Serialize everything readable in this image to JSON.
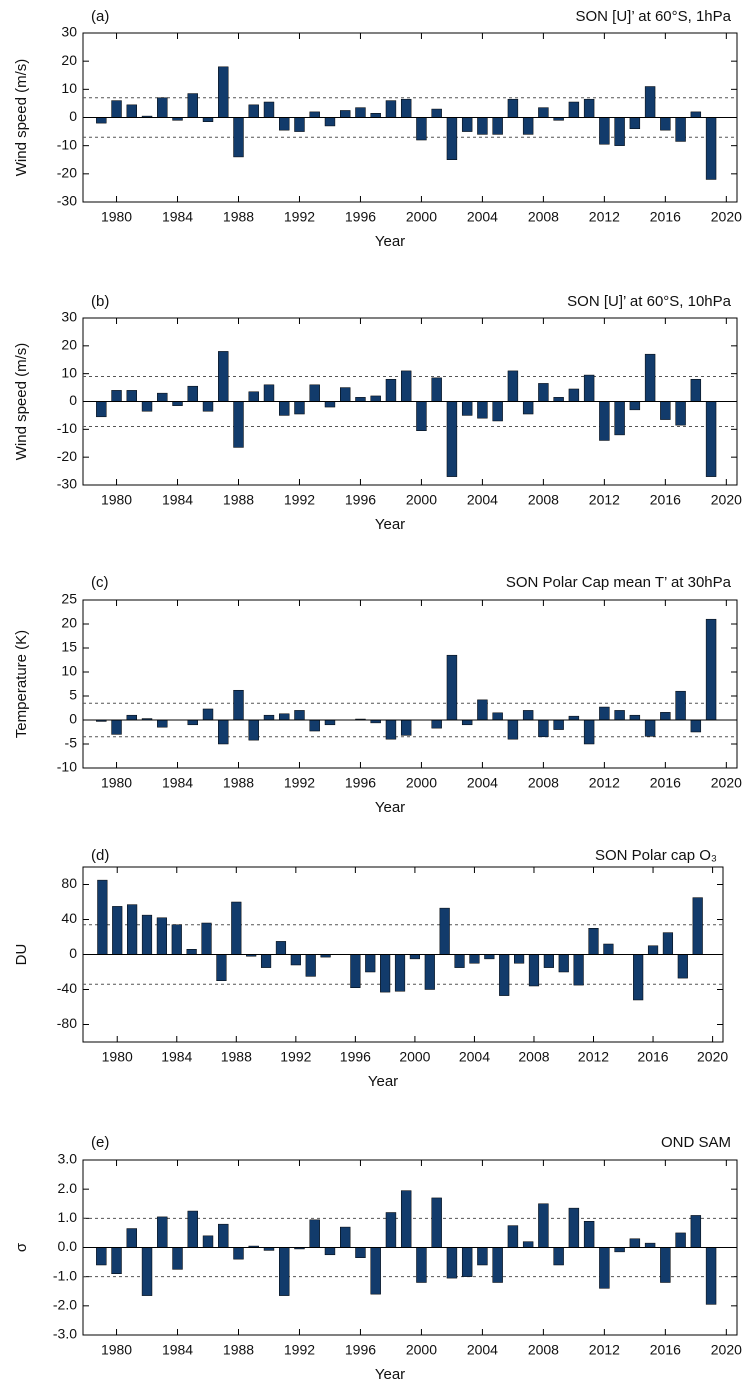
{
  "chart_data": [
    {
      "type": "bar",
      "panel_label": "(a)",
      "title": "SON [U]’ at 60°S, 1hPa",
      "ylabel": "Wind speed (m/s)",
      "xlabel": "Year",
      "color": "#123b6b",
      "x": [
        1979,
        1980,
        1981,
        1982,
        1983,
        1984,
        1985,
        1986,
        1987,
        1988,
        1989,
        1990,
        1991,
        1992,
        1993,
        1994,
        1995,
        1996,
        1997,
        1998,
        1999,
        2000,
        2001,
        2002,
        2003,
        2004,
        2005,
        2006,
        2007,
        2008,
        2009,
        2010,
        2011,
        2012,
        2013,
        2014,
        2015,
        2016,
        2017,
        2018,
        2019
      ],
      "values": [
        -2,
        6,
        4.5,
        0.5,
        7,
        -1,
        8.5,
        -1.5,
        18,
        -14,
        4.5,
        5.5,
        -4.5,
        -5,
        2,
        -3,
        2.5,
        3.5,
        1.5,
        6,
        6.5,
        -8,
        3,
        -15,
        -5,
        -6,
        -6,
        6.5,
        -6,
        3.5,
        -1,
        5.5,
        6.5,
        -9.5,
        -10,
        -4,
        11,
        -4.5,
        -8.5,
        2,
        -22
      ],
      "hlines": [
        7,
        -7
      ],
      "xlim": [
        1977.8,
        2020.7
      ],
      "ylim": [
        -30,
        30
      ],
      "xticks": [
        1980,
        1984,
        1988,
        1992,
        1996,
        2000,
        2004,
        2008,
        2012,
        2016,
        2020
      ],
      "yticks": [
        -30,
        -20,
        -10,
        0,
        10,
        20,
        30
      ]
    },
    {
      "type": "bar",
      "panel_label": "(b)",
      "title": "SON [U]’ at 60°S, 10hPa",
      "ylabel": "Wind speed (m/s)",
      "xlabel": "Year",
      "color": "#123b6b",
      "x": [
        1979,
        1980,
        1981,
        1982,
        1983,
        1984,
        1985,
        1986,
        1987,
        1988,
        1989,
        1990,
        1991,
        1992,
        1993,
        1994,
        1995,
        1996,
        1997,
        1998,
        1999,
        2000,
        2001,
        2002,
        2003,
        2004,
        2005,
        2006,
        2007,
        2008,
        2009,
        2010,
        2011,
        2012,
        2013,
        2014,
        2015,
        2016,
        2017,
        2018,
        2019
      ],
      "values": [
        -5.5,
        4,
        4,
        -3.5,
        3,
        -1.5,
        5.5,
        -3.5,
        18,
        -16.5,
        3.5,
        6,
        -5,
        -4.5,
        6,
        -2,
        5,
        1.5,
        2,
        8,
        11,
        -10.5,
        8.5,
        -27,
        -5,
        -6,
        -7,
        11,
        -4.5,
        6.5,
        1.5,
        4.5,
        9.5,
        -14,
        -12,
        -3,
        17,
        -6.5,
        -8.5,
        8,
        -27
      ],
      "hlines": [
        9,
        -9
      ],
      "xlim": [
        1977.8,
        2020.7
      ],
      "ylim": [
        -30,
        30
      ],
      "xticks": [
        1980,
        1984,
        1988,
        1992,
        1996,
        2000,
        2004,
        2008,
        2012,
        2016,
        2020
      ],
      "yticks": [
        -30,
        -20,
        -10,
        0,
        10,
        20,
        30
      ]
    },
    {
      "type": "bar",
      "panel_label": "(c)",
      "title": "SON Polar Cap mean T’ at 30hPa",
      "ylabel": "Temperature (K)",
      "xlabel": "Year",
      "color": "#123b6b",
      "x": [
        1979,
        1980,
        1981,
        1982,
        1983,
        1984,
        1985,
        1986,
        1987,
        1988,
        1989,
        1990,
        1991,
        1992,
        1993,
        1994,
        1995,
        1996,
        1997,
        1998,
        1999,
        2000,
        2001,
        2002,
        2003,
        2004,
        2005,
        2006,
        2007,
        2008,
        2009,
        2010,
        2011,
        2012,
        2013,
        2014,
        2015,
        2016,
        2017,
        2018,
        2019
      ],
      "values": [
        -0.3,
        -3,
        1,
        0.3,
        -1.5,
        0,
        -1,
        2.3,
        -5,
        6.2,
        -4.2,
        1,
        1.3,
        2,
        -2.3,
        -1,
        0,
        0.2,
        -0.6,
        -4,
        -3.2,
        0,
        -1.7,
        13.5,
        -1,
        4.2,
        1.5,
        -4,
        2,
        -3.5,
        -2,
        0.8,
        -5,
        2.7,
        2,
        1,
        -3.4,
        1.6,
        6,
        -2.5,
        21
      ],
      "hlines": [
        3.5,
        -3.5
      ],
      "xlim": [
        1977.8,
        2020.7
      ],
      "ylim": [
        -10,
        25
      ],
      "xticks": [
        1980,
        1984,
        1988,
        1992,
        1996,
        2000,
        2004,
        2008,
        2012,
        2016,
        2020
      ],
      "yticks": [
        -10,
        -5,
        0,
        5,
        10,
        15,
        20,
        25
      ]
    },
    {
      "type": "bar",
      "panel_label": "(d)",
      "title": "SON Polar cap O₃",
      "ylabel": "DU",
      "xlabel": "Year",
      "color": "#123b6b",
      "x": [
        1979,
        1980,
        1981,
        1982,
        1983,
        1984,
        1985,
        1986,
        1987,
        1988,
        1989,
        1990,
        1991,
        1992,
        1993,
        1994,
        1995,
        1996,
        1997,
        1998,
        1999,
        2000,
        2001,
        2002,
        2003,
        2004,
        2005,
        2006,
        2007,
        2008,
        2009,
        2010,
        2011,
        2012,
        2013,
        2014,
        2015,
        2016,
        2017,
        2018,
        2019
      ],
      "values": [
        85,
        55,
        57,
        45,
        42,
        34,
        6,
        36,
        -30,
        60,
        -2,
        -15,
        15,
        -12,
        -25,
        -3,
        0,
        -38,
        -20,
        -43,
        -42,
        -5,
        -40,
        53,
        -15,
        -10,
        -5,
        -47,
        -10,
        -36,
        -15,
        -20,
        -35,
        30,
        12,
        0,
        -52,
        10,
        25,
        -27,
        65
      ],
      "hlines": [
        34,
        -34
      ],
      "xlim": [
        1977.7,
        2020.7
      ],
      "ylim": [
        -100,
        100
      ],
      "xticks": [
        1980,
        1984,
        1988,
        1992,
        1996,
        2000,
        2004,
        2008,
        2012,
        2016,
        2020
      ],
      "yticks": [
        -80,
        -40,
        0,
        40,
        80
      ]
    },
    {
      "type": "bar",
      "panel_label": "(e)",
      "title": "OND SAM",
      "ylabel": "σ",
      "xlabel": "Year",
      "color": "#123b6b",
      "x": [
        1979,
        1980,
        1981,
        1982,
        1983,
        1984,
        1985,
        1986,
        1987,
        1988,
        1989,
        1990,
        1991,
        1992,
        1993,
        1994,
        1995,
        1996,
        1997,
        1998,
        1999,
        2000,
        2001,
        2002,
        2003,
        2004,
        2005,
        2006,
        2007,
        2008,
        2009,
        2010,
        2011,
        2012,
        2013,
        2014,
        2015,
        2016,
        2017,
        2018,
        2019
      ],
      "values": [
        -0.6,
        -0.9,
        0.65,
        -1.65,
        1.05,
        -0.75,
        1.25,
        0.4,
        0.8,
        -0.4,
        0.05,
        -0.1,
        -1.65,
        -0.05,
        0.95,
        -0.25,
        0.7,
        -0.35,
        -1.6,
        1.2,
        1.95,
        -1.2,
        1.7,
        -1.05,
        -1,
        -0.6,
        -1.2,
        0.75,
        0.2,
        1.5,
        -0.6,
        1.35,
        0.9,
        -1.4,
        -0.15,
        0.3,
        0.15,
        -1.2,
        0.5,
        1.1,
        -1.95
      ],
      "hlines": [
        1,
        -1
      ],
      "xlim": [
        1977.8,
        2020.7
      ],
      "ylim": [
        -3,
        3
      ],
      "xticks": [
        1980,
        1984,
        1988,
        1992,
        1996,
        2000,
        2004,
        2008,
        2012,
        2016,
        2020
      ],
      "yticks": [
        {
          "value": -3,
          "label": "-3.0"
        },
        {
          "value": -2,
          "label": "-2.0"
        },
        {
          "value": -1,
          "label": "-1.0"
        },
        {
          "value": 0,
          "label": "0.0"
        },
        {
          "value": 1,
          "label": "1.0"
        },
        {
          "value": 2,
          "label": "2.0"
        },
        {
          "value": 3,
          "label": "3.0"
        }
      ]
    }
  ]
}
